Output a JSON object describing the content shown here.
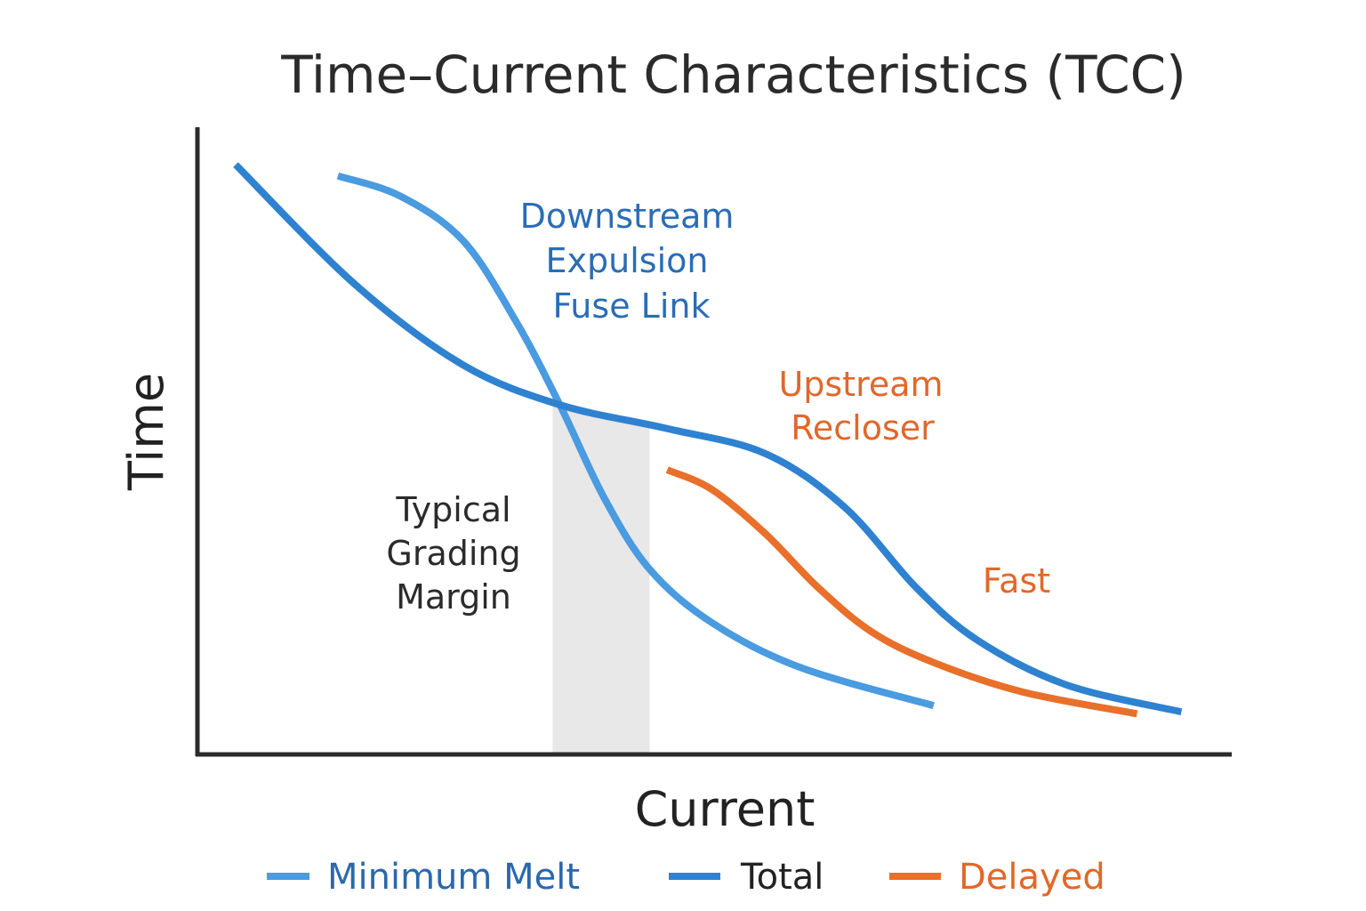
{
  "chart_data": {
    "type": "line",
    "title": "Time–Current Characteristics (TCC)",
    "xlabel": "Current",
    "ylabel": "Time",
    "xlim": [
      0,
      100
    ],
    "ylim": [
      0,
      100
    ],
    "grid": false,
    "ticks": false,
    "legend_placement": "bottom",
    "series": [
      {
        "name": "Minimum Melt",
        "color": "#4a9be0",
        "label_color": "#2a68ad",
        "points": [
          [
            13.6,
            92.5
          ],
          [
            19.6,
            89.3
          ],
          [
            25.7,
            82.2
          ],
          [
            30.8,
            69.4
          ],
          [
            35.1,
            55.9
          ],
          [
            39.4,
            41.0
          ],
          [
            43.8,
            29.6
          ],
          [
            49.8,
            21.1
          ],
          [
            58.4,
            13.9
          ],
          [
            71.3,
            7.8
          ]
        ]
      },
      {
        "name": "Total",
        "color": "#2f82d0",
        "label_color": "#222222",
        "points": [
          [
            3.7,
            94.3
          ],
          [
            15.3,
            75.1
          ],
          [
            25.7,
            62.3
          ],
          [
            35.1,
            55.9
          ],
          [
            45.5,
            52.1
          ],
          [
            55.0,
            48.1
          ],
          [
            62.7,
            39.5
          ],
          [
            69.6,
            26.7
          ],
          [
            75.6,
            18.2
          ],
          [
            84.2,
            11.1
          ],
          [
            95.3,
            6.8
          ]
        ]
      },
      {
        "name": "Delayed",
        "color": "#e8702a",
        "label_color": "#e0682a",
        "points": [
          [
            45.5,
            45.5
          ],
          [
            49.8,
            42.4
          ],
          [
            55.0,
            35.3
          ],
          [
            60.1,
            26.7
          ],
          [
            65.3,
            19.6
          ],
          [
            71.3,
            14.7
          ],
          [
            79.9,
            10.0
          ],
          [
            91.0,
            6.5
          ]
        ]
      }
    ],
    "shaded_band": {
      "x": [
        34.4,
        43.8
      ],
      "color": "#e8e8e8"
    },
    "annotations": {
      "fuse": [
        "Downstream",
        "Expulsion",
        "Fuse Link"
      ],
      "recloser": [
        "Upstream",
        "Recloser"
      ],
      "fast": "Fast",
      "margin": [
        "Typical",
        "Grading",
        "Margin"
      ]
    },
    "annotation_colors": {
      "fuse": "#2a6db5",
      "recloser": "#e0682a",
      "margin": "#2b2b2b"
    }
  }
}
